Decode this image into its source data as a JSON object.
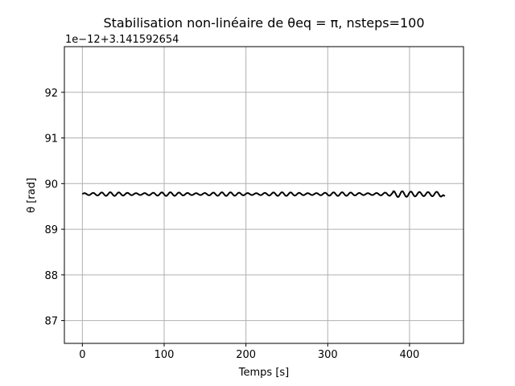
{
  "chart_data": {
    "type": "line",
    "title": "Stabilisation non-linéaire de θeq = π, nsteps=100",
    "xlabel": "Temps [s]",
    "ylabel": "θ [rad]",
    "offset_text": "1e−12+3.141592654",
    "xlim": [
      -22,
      466
    ],
    "ylim": [
      86.5,
      93.0
    ],
    "x_ticks": [
      0,
      100,
      200,
      300,
      400
    ],
    "y_ticks": [
      87,
      88,
      89,
      90,
      91,
      92
    ],
    "grid": true,
    "series": [
      {
        "color": "#000000",
        "x_start": 0,
        "x_end": 443,
        "mean": 89.77,
        "oscillation_amplitude": 0.04,
        "oscillation_period": 10.5,
        "end_value": 89.72
      }
    ]
  }
}
